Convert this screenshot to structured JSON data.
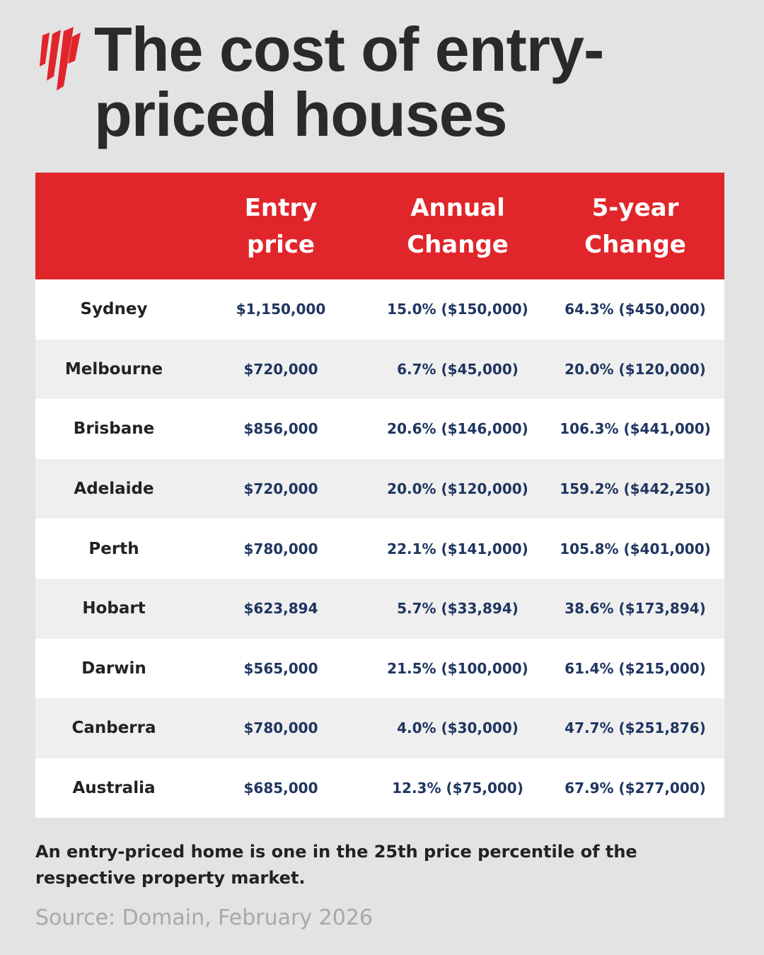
{
  "header": {
    "title": "The cost of entry-priced houses"
  },
  "table": {
    "headers": [
      "Entry price",
      "Annual Change",
      "5-year Change"
    ],
    "rows": [
      [
        "Sydney",
        "$1,150,000",
        "15.0% ($150,000)",
        "64.3% ($450,000)"
      ],
      [
        "Melbourne",
        "$720,000",
        "6.7% ($45,000)",
        "20.0% ($120,000)"
      ],
      [
        "Brisbane",
        "$856,000",
        "20.6% ($146,000)",
        "106.3% ($441,000)"
      ],
      [
        "Adelaide",
        "$720,000",
        "20.0% ($120,000)",
        "159.2% ($442,250)"
      ],
      [
        "Perth",
        "$780,000",
        "22.1% ($141,000)",
        "105.8% ($401,000)"
      ],
      [
        "Hobart",
        "$623,894",
        "5.7% ($33,894)",
        "38.6% ($173,894)"
      ],
      [
        "Darwin",
        "$565,000",
        "21.5% ($100,000)",
        "61.4% ($215,000)"
      ],
      [
        "Canberra",
        "$780,000",
        "4.0% ($30,000)",
        "47.7% ($251,876)"
      ],
      [
        "Australia",
        "$685,000",
        "12.3% ($75,000)",
        "67.9% ($277,000)"
      ]
    ]
  },
  "footnote": "An entry-priced home is one in the 25th price percentile of the respective property market.",
  "source": "Source: Domain, February 2026"
}
